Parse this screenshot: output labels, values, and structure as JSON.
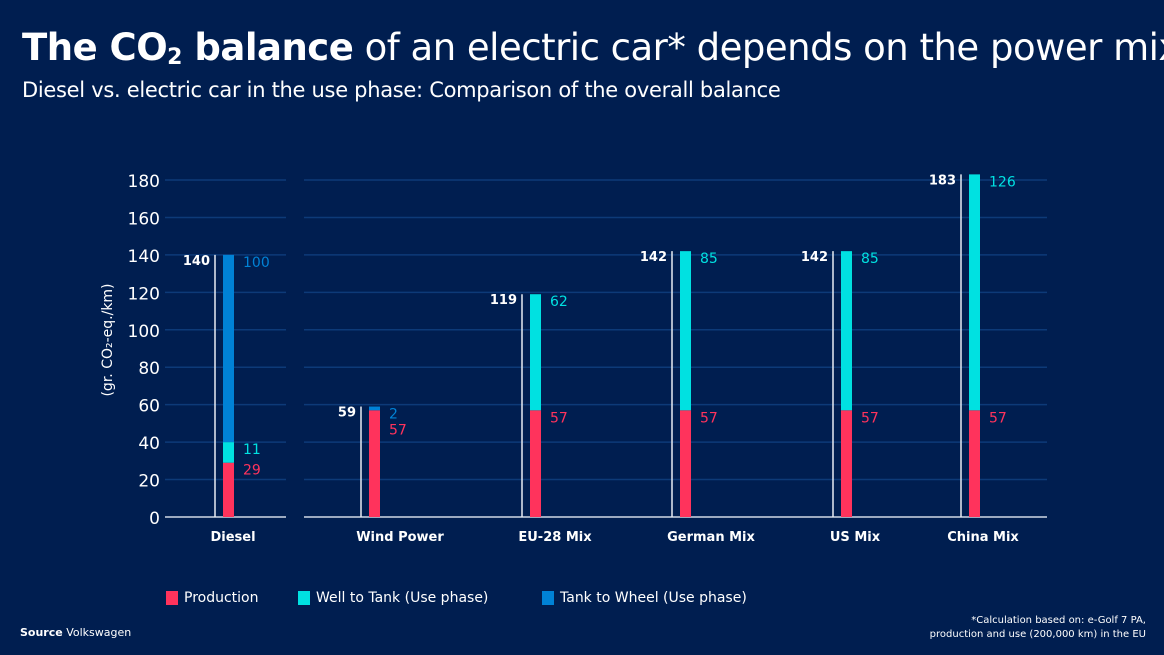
{
  "header": {
    "title_bold": "The CO",
    "title_sub": "2",
    "title_bold_end": " balance",
    "title_rest": " of an electric car* depends on the power mix",
    "subtitle": "Diesel vs. electric car in the use phase: Comparison of the overall balance"
  },
  "chart_data": {
    "type": "bar",
    "stacked": true,
    "ylabel": "(gr. CO₂-eq./km)",
    "ylim": [
      0,
      180
    ],
    "yticks": [
      0,
      20,
      40,
      60,
      80,
      100,
      120,
      140,
      160,
      180
    ],
    "grid": true,
    "legend_placement": "bottom",
    "categories": [
      "Diesel",
      "Wind Power",
      "EU-28 Mix",
      "German Mix",
      "US Mix",
      "China Mix"
    ],
    "totals": [
      140,
      59,
      119,
      142,
      142,
      183
    ],
    "series": [
      {
        "name": "Production",
        "color": "#ff335c",
        "values": [
          29,
          57,
          57,
          57,
          57,
          57
        ]
      },
      {
        "name": "Well to Tank (Use phase)",
        "color": "#00e1e1",
        "values": [
          11,
          0,
          62,
          85,
          85,
          126
        ]
      },
      {
        "name": "Tank to Wheel (Use phase)",
        "color": "#0082d6",
        "values": [
          100,
          2,
          0,
          0,
          0,
          0
        ]
      }
    ]
  },
  "footer": {
    "source_label": "Source",
    "source_value": " Volkswagen",
    "note_line1": "*Calculation based on: e-Golf 7 PA,",
    "note_line2": "production and use (200,000 km) in the EU"
  }
}
